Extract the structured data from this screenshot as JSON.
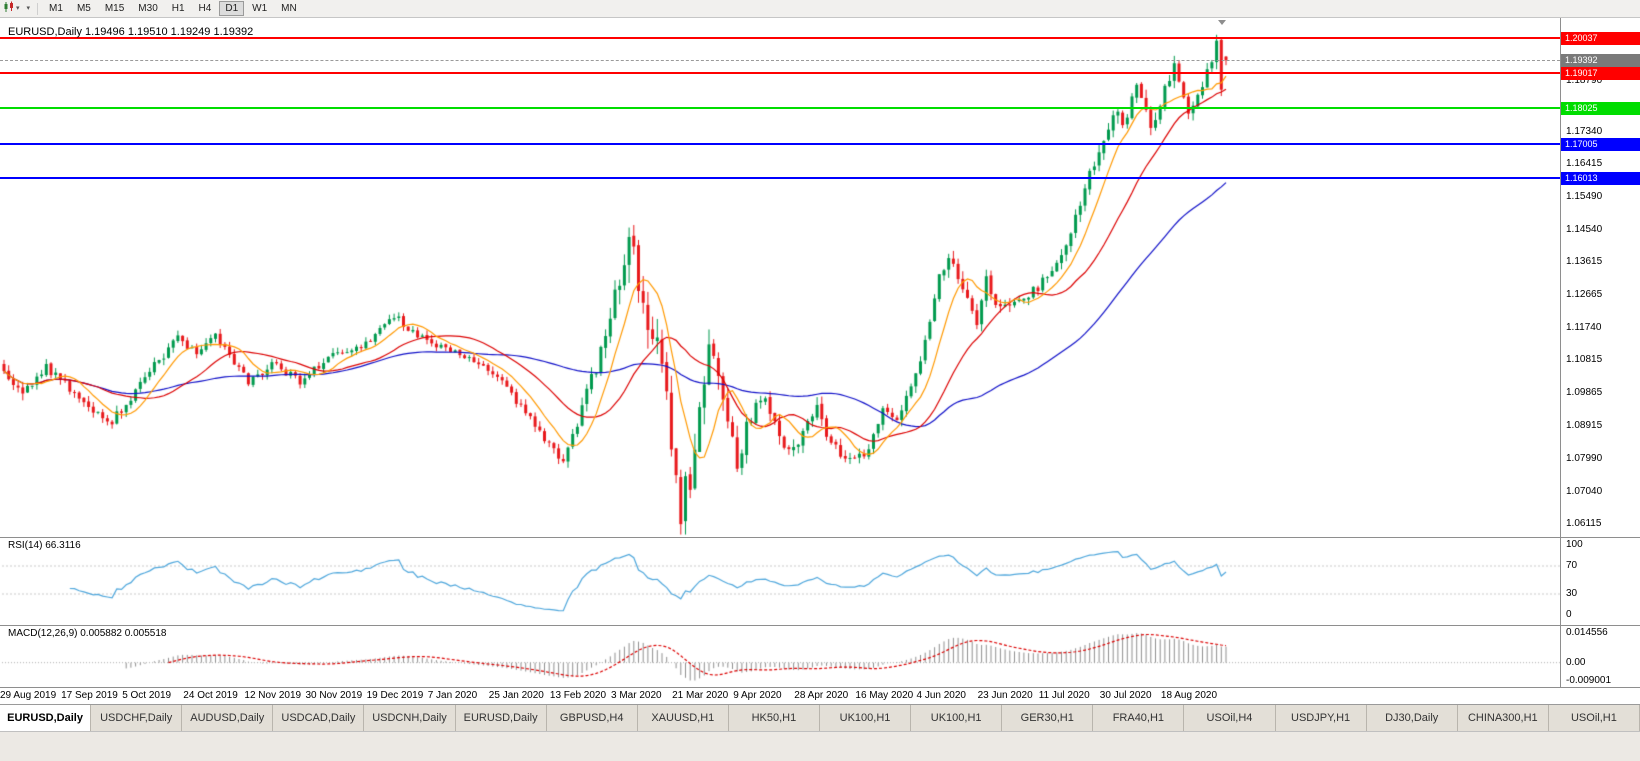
{
  "icons": {
    "dropdown_caret": "▾"
  },
  "toolbar": {
    "timeframes": [
      {
        "label": "M1",
        "active": false
      },
      {
        "label": "M5",
        "active": false
      },
      {
        "label": "M15",
        "active": false
      },
      {
        "label": "M30",
        "active": false
      },
      {
        "label": "H1",
        "active": false
      },
      {
        "label": "H4",
        "active": false
      },
      {
        "label": "D1",
        "active": true
      },
      {
        "label": "W1",
        "active": false
      },
      {
        "label": "MN",
        "active": false
      }
    ]
  },
  "chart": {
    "info": "EURUSD,Daily 1.19496 1.19510 1.19249 1.19392"
  },
  "rsi_pane": {
    "label": "RSI(14) 66.3116",
    "ticks": [
      "100",
      "70",
      "30",
      "0"
    ],
    "levels": [
      70,
      30
    ]
  },
  "macd_pane": {
    "label": "MACD(12,26,9) 0.005882 0.005518",
    "ticks": [
      "0.014556",
      "0.00",
      "-0.009001"
    ]
  },
  "tabs": [
    {
      "label": "EURUSD,Daily",
      "active": true
    },
    {
      "label": "USDCHF,Daily",
      "active": false
    },
    {
      "label": "AUDUSD,Daily",
      "active": false
    },
    {
      "label": "USDCAD,Daily",
      "active": false
    },
    {
      "label": "USDCNH,Daily",
      "active": false
    },
    {
      "label": "EURUSD,Daily",
      "active": false
    },
    {
      "label": "GBPUSD,H4",
      "active": false
    },
    {
      "label": "XAUUSD,H1",
      "active": false
    },
    {
      "label": "HK50,H1",
      "active": false
    },
    {
      "label": "UK100,H1",
      "active": false
    },
    {
      "label": "UK100,H1",
      "active": false
    },
    {
      "label": "GER30,H1",
      "active": false
    },
    {
      "label": "FRA40,H1",
      "active": false
    },
    {
      "label": "USOil,H4",
      "active": false
    },
    {
      "label": "USDJPY,H1",
      "active": false
    },
    {
      "label": "DJ30,Daily",
      "active": false
    },
    {
      "label": "CHINA300,H1",
      "active": false
    },
    {
      "label": "USOil,H1",
      "active": false
    }
  ],
  "chart_data": {
    "type": "candlestick",
    "symbol": "EURUSD",
    "timeframe": "Daily",
    "last_ohlc": {
      "open": 1.19496,
      "high": 1.1951,
      "low": 1.19249,
      "close": 1.19392
    },
    "price_axis": {
      "max": 1.206,
      "min": 1.0575,
      "ticks": [
        "1.18790",
        "1.17340",
        "1.16415",
        "1.15490",
        "1.14540",
        "1.13615",
        "1.12665",
        "1.11740",
        "1.10815",
        "1.09865",
        "1.08915",
        "1.07990",
        "1.07040",
        "1.06115"
      ]
    },
    "hlines": [
      {
        "price": 1.20037,
        "label": "1.20037",
        "color": "#ff0000"
      },
      {
        "price": 1.19017,
        "label": "1.19017",
        "color": "#ff0000"
      },
      {
        "price": 1.18025,
        "label": "1.18025",
        "color": "#00dd00"
      },
      {
        "price": 1.17005,
        "label": "1.17005",
        "color": "#0000ff"
      },
      {
        "price": 1.16013,
        "label": "1.16013",
        "color": "#0000ff"
      }
    ],
    "current_price": {
      "price": 1.19392,
      "label": "1.19392"
    },
    "x_axis_dates": [
      {
        "label": "29 Aug 2019",
        "i": 0
      },
      {
        "label": "17 Sep 2019",
        "i": 13
      },
      {
        "label": "5 Oct 2019",
        "i": 26
      },
      {
        "label": "24 Oct 2019",
        "i": 39
      },
      {
        "label": "12 Nov 2019",
        "i": 52
      },
      {
        "label": "30 Nov 2019",
        "i": 65
      },
      {
        "label": "19 Dec 2019",
        "i": 78
      },
      {
        "label": "7 Jan 2020",
        "i": 91
      },
      {
        "label": "25 Jan 2020",
        "i": 104
      },
      {
        "label": "13 Feb 2020",
        "i": 117
      },
      {
        "label": "3 Mar 2020",
        "i": 130
      },
      {
        "label": "21 Mar 2020",
        "i": 143
      },
      {
        "label": "9 Apr 2020",
        "i": 156
      },
      {
        "label": "28 Apr 2020",
        "i": 169
      },
      {
        "label": "16 May 2020",
        "i": 182
      },
      {
        "label": "4 Jun 2020",
        "i": 195
      },
      {
        "label": "23 Jun 2020",
        "i": 208
      },
      {
        "label": "11 Jul 2020",
        "i": 221
      },
      {
        "label": "30 Jul 2020",
        "i": 234
      },
      {
        "label": "18 Aug 2020",
        "i": 247
      }
    ],
    "bar_count": 261,
    "price_path_anchors": [
      [
        0,
        1.105,
        0.004
      ],
      [
        4,
        1.0985,
        0.004
      ],
      [
        9,
        1.1065,
        0.0035
      ],
      [
        14,
        1.1,
        0.0035
      ],
      [
        22,
        1.0895,
        0.0035
      ],
      [
        27,
        1.0975,
        0.0035
      ],
      [
        37,
        1.115,
        0.0035
      ],
      [
        41,
        1.1095,
        0.003
      ],
      [
        45,
        1.1155,
        0.003
      ],
      [
        52,
        1.1015,
        0.003
      ],
      [
        57,
        1.107,
        0.0028
      ],
      [
        63,
        1.102,
        0.0028
      ],
      [
        70,
        1.1095,
        0.0028
      ],
      [
        76,
        1.1115,
        0.0025
      ],
      [
        83,
        1.121,
        0.0028
      ],
      [
        88,
        1.115,
        0.0028
      ],
      [
        93,
        1.1115,
        0.0025
      ],
      [
        98,
        1.109,
        0.0025
      ],
      [
        104,
        1.105,
        0.0028
      ],
      [
        110,
        1.0945,
        0.003
      ],
      [
        119,
        1.079,
        0.0035
      ],
      [
        124,
        1.0985,
        0.005
      ],
      [
        128,
        1.1135,
        0.006
      ],
      [
        133,
        1.145,
        0.011
      ],
      [
        135,
        1.13,
        0.011
      ],
      [
        139,
        1.1105,
        0.011
      ],
      [
        141,
        1.096,
        0.012
      ],
      [
        144,
        1.0655,
        0.013
      ],
      [
        147,
        1.08,
        0.011
      ],
      [
        150,
        1.113,
        0.01
      ],
      [
        153,
        1.096,
        0.008
      ],
      [
        156,
        1.0795,
        0.007
      ],
      [
        159,
        1.0925,
        0.006
      ],
      [
        162,
        1.0975,
        0.005
      ],
      [
        165,
        1.086,
        0.005
      ],
      [
        168,
        1.0825,
        0.0045
      ],
      [
        173,
        1.095,
        0.0045
      ],
      [
        176,
        1.084,
        0.004
      ],
      [
        180,
        1.0795,
        0.0035
      ],
      [
        184,
        1.0815,
        0.0035
      ],
      [
        187,
        1.095,
        0.004
      ],
      [
        190,
        1.09,
        0.0035
      ],
      [
        193,
        1.101,
        0.004
      ],
      [
        196,
        1.1135,
        0.0045
      ],
      [
        199,
        1.134,
        0.005
      ],
      [
        201,
        1.1365,
        0.005
      ],
      [
        204,
        1.1295,
        0.005
      ],
      [
        207,
        1.1185,
        0.0045
      ],
      [
        209,
        1.1305,
        0.0045
      ],
      [
        212,
        1.122,
        0.004
      ],
      [
        216,
        1.124,
        0.0035
      ],
      [
        220,
        1.129,
        0.0035
      ],
      [
        223,
        1.1345,
        0.0035
      ],
      [
        226,
        1.14,
        0.004
      ],
      [
        229,
        1.1525,
        0.0045
      ],
      [
        232,
        1.165,
        0.005
      ],
      [
        235,
        1.175,
        0.0055
      ],
      [
        237,
        1.178,
        0.005
      ],
      [
        239,
        1.1765,
        0.005
      ],
      [
        241,
        1.187,
        0.005
      ],
      [
        244,
        1.1745,
        0.005
      ],
      [
        247,
        1.185,
        0.0045
      ],
      [
        249,
        1.193,
        0.0045
      ],
      [
        252,
        1.1795,
        0.0045
      ],
      [
        254,
        1.184,
        0.004
      ],
      [
        256,
        1.1905,
        0.004
      ],
      [
        258,
        1.1985,
        0.0045
      ],
      [
        259,
        1.186,
        0.0045
      ],
      [
        260,
        1.19392,
        0.003
      ]
    ],
    "spike": {
      "i": 258,
      "high": 1.2004
    },
    "indicators": {
      "rsi": {
        "period": 14,
        "last": 66.3116
      },
      "macd": {
        "fast": 12,
        "slow": 26,
        "signal": 9,
        "last": 0.005882,
        "last_signal": 0.005518
      },
      "moving_averages": [
        {
          "period": 8
        },
        {
          "period": 21
        },
        {
          "period": 55
        }
      ]
    },
    "colors": {
      "up": "#009A4E",
      "down": "#E8191C",
      "ma_fast": "#FF9900",
      "ma_mid": "#DC0000",
      "ma_slow": "#0F0FC8",
      "rsi": "#4FA7DC",
      "macd_hist": "#8F8F8F",
      "macd_signal": "#DC0000"
    }
  }
}
